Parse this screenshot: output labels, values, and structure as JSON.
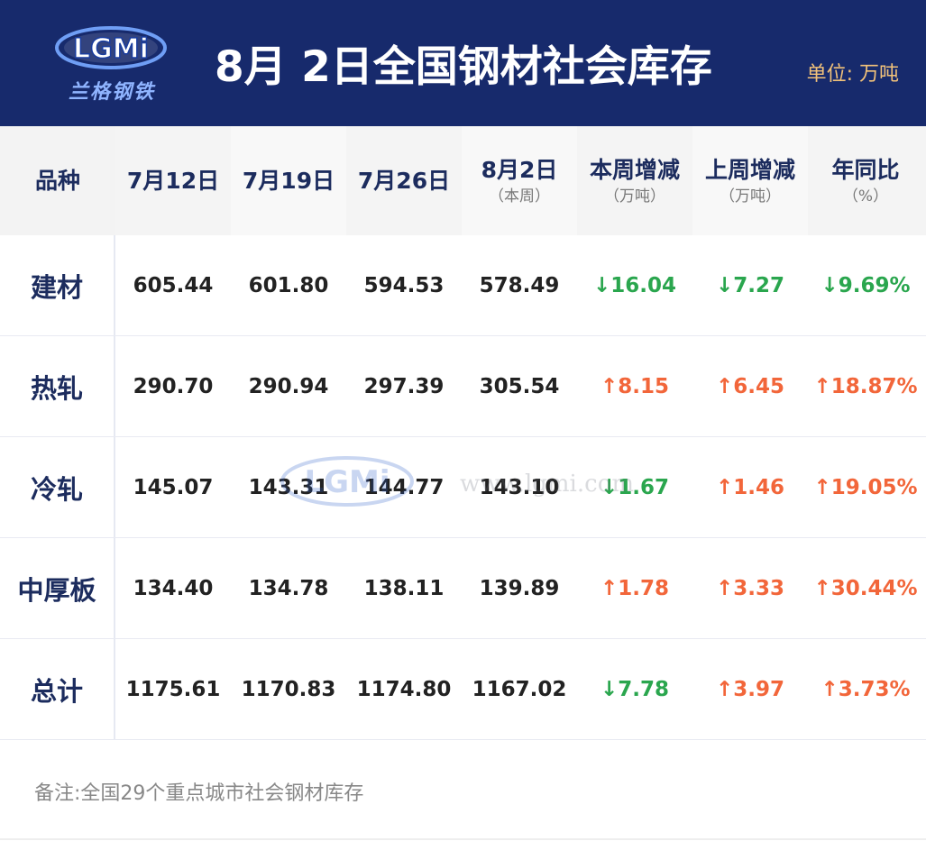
{
  "header": {
    "logo_text": "LGMi",
    "logo_subtitle": "兰格钢铁",
    "title": "8月 2日全国钢材社会库存",
    "unit": "单位: 万吨"
  },
  "table": {
    "columns": [
      {
        "label": "品种",
        "sub": ""
      },
      {
        "label": "7月12日",
        "sub": ""
      },
      {
        "label": "7月19日",
        "sub": ""
      },
      {
        "label": "7月26日",
        "sub": ""
      },
      {
        "label": "8月2日",
        "sub": "（本周）"
      },
      {
        "label": "本周增减",
        "sub": "（万吨）"
      },
      {
        "label": "上周增减",
        "sub": "（万吨）"
      },
      {
        "label": "年同比",
        "sub": "（%）"
      }
    ],
    "rows": [
      {
        "name": "建材",
        "v1": "605.44",
        "v2": "601.80",
        "v3": "594.53",
        "v4": "578.49",
        "wk": "↓16.04",
        "lwk": "↓7.27",
        "yoy": "↓9.69%"
      },
      {
        "name": "热轧",
        "v1": "290.70",
        "v2": "290.94",
        "v3": "297.39",
        "v4": "305.54",
        "wk": "↑8.15",
        "lwk": "↑6.45",
        "yoy": "↑18.87%"
      },
      {
        "name": "冷轧",
        "v1": "145.07",
        "v2": "143.31",
        "v3": "144.77",
        "v4": "143.10",
        "wk": "↓1.67",
        "lwk": "↑1.46",
        "yoy": "↑19.05%"
      },
      {
        "name": "中厚板",
        "v1": "134.40",
        "v2": "134.78",
        "v3": "138.11",
        "v4": "139.89",
        "wk": "↑1.78",
        "lwk": "↑3.33",
        "yoy": "↑30.44%"
      },
      {
        "name": "总计",
        "v1": "1175.61",
        "v2": "1170.83",
        "v3": "1174.80",
        "v4": "1167.02",
        "wk": "↓7.78",
        "lwk": "↑3.97",
        "yoy": "↑3.73%"
      }
    ]
  },
  "note": "备注:全国29个重点城市社会钢材库存",
  "watermark": {
    "logo_text": "LGMi",
    "text": "www.lgmi.com"
  },
  "colors": {
    "header_bg": "#172a6c",
    "up": "#f2663a",
    "down": "#2aa64e",
    "unit": "#f2c27a"
  }
}
